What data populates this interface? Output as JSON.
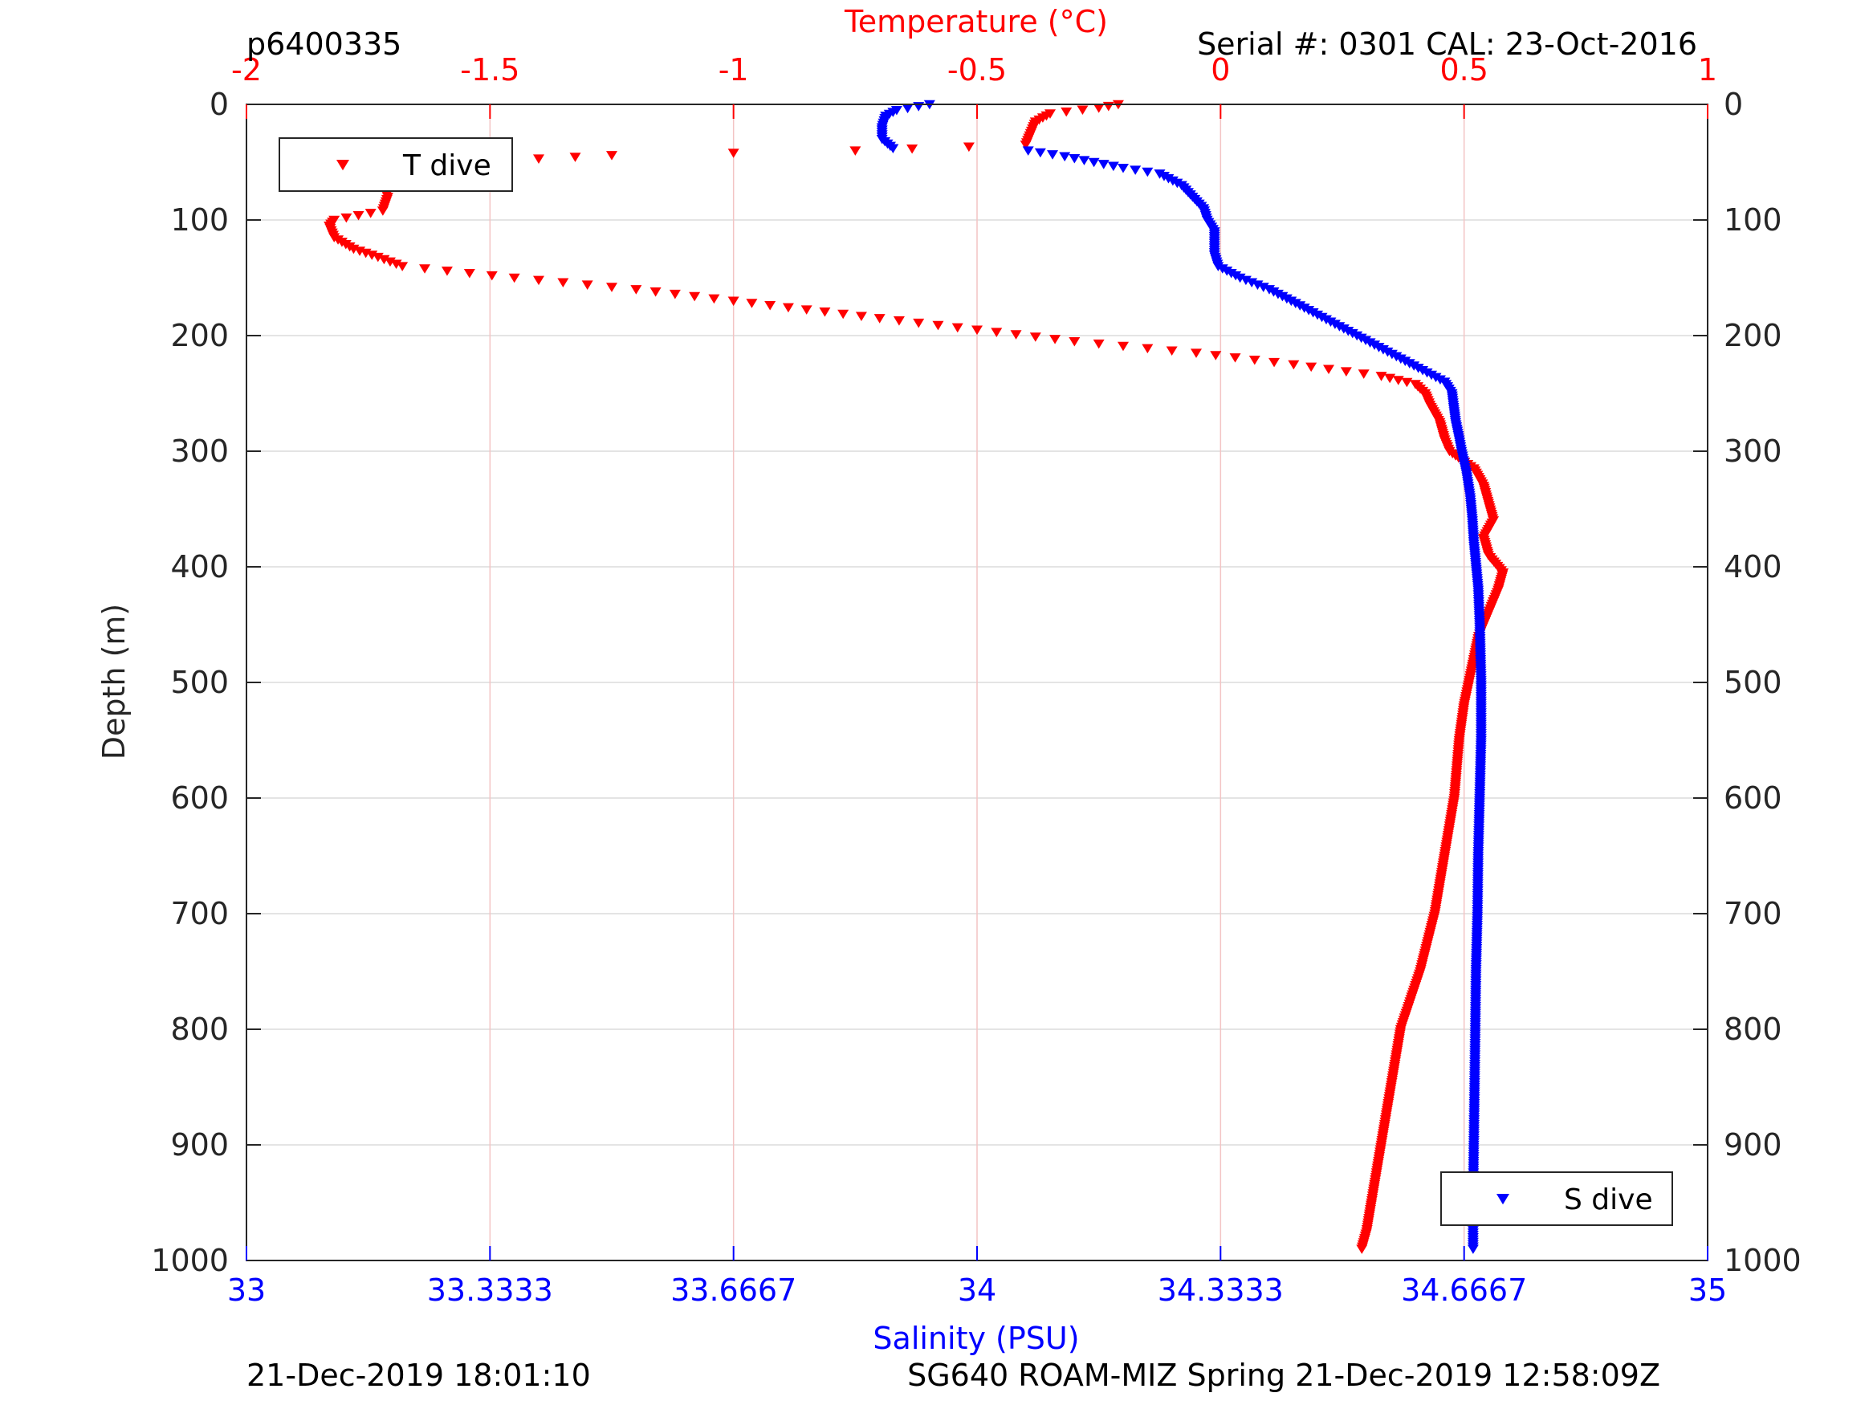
{
  "chart_data": {
    "type": "scatter",
    "header": {
      "left": "p6400335",
      "right": "Serial #: 0301  CAL: 23-Oct-2016"
    },
    "footer": {
      "left": "21-Dec-2019 18:01:10",
      "right": "SG640 ROAM-MIZ Spring 21-Dec-2019 12:58:09Z"
    },
    "ylabel": "Depth (m)",
    "ylim": [
      1000,
      0
    ],
    "y_ticks": [
      "0",
      "100",
      "200",
      "300",
      "400",
      "500",
      "600",
      "700",
      "800",
      "900",
      "1000"
    ],
    "temperature_axis": {
      "label": "Temperature (°C)",
      "position": "top",
      "xlim": [
        -2,
        1
      ],
      "ticks": [
        -2,
        -1.5,
        -1,
        -0.5,
        0,
        0.5,
        1
      ],
      "tick_labels": [
        "-2",
        "-1.5",
        "-1",
        "-0.5",
        "0",
        "0.5",
        "1"
      ],
      "color": "#ff0000",
      "grid": true
    },
    "salinity_axis": {
      "label": "Salinity (PSU)",
      "position": "bottom",
      "xlim": [
        33,
        35
      ],
      "ticks": [
        33,
        33.3333,
        33.6667,
        34,
        34.3333,
        34.6667,
        35
      ],
      "tick_labels": [
        "33",
        "33.3333",
        "33.6667",
        "34",
        "34.3333",
        "34.6667",
        "35"
      ],
      "color": "#0000ff"
    },
    "series": [
      {
        "name": "T dive",
        "axis": "temperature",
        "color": "#ff0000",
        "marker": "triangle-down",
        "legend_position": "top-left",
        "profile": [
          [
            0,
            -0.21
          ],
          [
            3,
            -0.25
          ],
          [
            8,
            -0.35
          ],
          [
            15,
            -0.38
          ],
          [
            25,
            -0.39
          ],
          [
            35,
            -0.4
          ],
          [
            40,
            -0.75
          ],
          [
            42,
            -1.0
          ],
          [
            44,
            -1.25
          ],
          [
            47,
            -1.4
          ],
          [
            50,
            -1.55
          ],
          [
            55,
            -1.66
          ],
          [
            62,
            -1.7
          ],
          [
            70,
            -1.72
          ],
          [
            80,
            -1.71
          ],
          [
            92,
            -1.72
          ],
          [
            100,
            -1.82
          ],
          [
            105,
            -1.83
          ],
          [
            115,
            -1.82
          ],
          [
            125,
            -1.78
          ],
          [
            132,
            -1.73
          ],
          [
            140,
            -1.68
          ],
          [
            150,
            -1.45
          ],
          [
            160,
            -1.2
          ],
          [
            170,
            -1.0
          ],
          [
            185,
            -0.7
          ],
          [
            195,
            -0.5
          ],
          [
            205,
            -0.3
          ],
          [
            215,
            -0.05
          ],
          [
            225,
            0.15
          ],
          [
            235,
            0.33
          ],
          [
            242,
            0.4
          ],
          [
            250,
            0.42
          ],
          [
            260,
            0.43
          ],
          [
            275,
            0.45
          ],
          [
            290,
            0.46
          ],
          [
            300,
            0.47
          ],
          [
            315,
            0.52
          ],
          [
            330,
            0.54
          ],
          [
            345,
            0.55
          ],
          [
            360,
            0.56
          ],
          [
            375,
            0.54
          ],
          [
            390,
            0.55
          ],
          [
            405,
            0.58
          ],
          [
            420,
            0.57
          ],
          [
            440,
            0.55
          ],
          [
            460,
            0.53
          ],
          [
            480,
            0.52
          ],
          [
            500,
            0.51
          ],
          [
            520,
            0.5
          ],
          [
            550,
            0.49
          ],
          [
            600,
            0.48
          ],
          [
            650,
            0.46
          ],
          [
            700,
            0.44
          ],
          [
            750,
            0.41
          ],
          [
            800,
            0.37
          ],
          [
            850,
            0.35
          ],
          [
            900,
            0.33
          ],
          [
            950,
            0.31
          ],
          [
            975,
            0.3
          ],
          [
            990,
            0.29
          ]
        ]
      },
      {
        "name": "S dive",
        "axis": "salinity",
        "color": "#0000ff",
        "marker": "triangle-down",
        "legend_position": "bottom-right",
        "profile": [
          [
            0,
            33.935
          ],
          [
            5,
            33.89
          ],
          [
            10,
            33.875
          ],
          [
            20,
            33.87
          ],
          [
            30,
            33.87
          ],
          [
            38,
            33.885
          ],
          [
            40,
            34.07
          ],
          [
            45,
            34.12
          ],
          [
            50,
            34.16
          ],
          [
            55,
            34.2
          ],
          [
            60,
            34.25
          ],
          [
            70,
            34.28
          ],
          [
            80,
            34.295
          ],
          [
            90,
            34.31
          ],
          [
            100,
            34.315
          ],
          [
            110,
            34.325
          ],
          [
            120,
            34.325
          ],
          [
            130,
            34.325
          ],
          [
            140,
            34.33
          ],
          [
            150,
            34.36
          ],
          [
            160,
            34.4
          ],
          [
            170,
            34.43
          ],
          [
            180,
            34.46
          ],
          [
            190,
            34.49
          ],
          [
            200,
            34.52
          ],
          [
            210,
            34.55
          ],
          [
            220,
            34.58
          ],
          [
            230,
            34.61
          ],
          [
            240,
            34.64
          ],
          [
            250,
            34.65
          ],
          [
            260,
            34.652
          ],
          [
            275,
            34.655
          ],
          [
            290,
            34.66
          ],
          [
            300,
            34.663
          ],
          [
            320,
            34.67
          ],
          [
            340,
            34.675
          ],
          [
            360,
            34.678
          ],
          [
            380,
            34.68
          ],
          [
            400,
            34.683
          ],
          [
            420,
            34.686
          ],
          [
            450,
            34.688
          ],
          [
            500,
            34.69
          ],
          [
            550,
            34.69
          ],
          [
            600,
            34.688
          ],
          [
            650,
            34.686
          ],
          [
            700,
            34.685
          ],
          [
            750,
            34.683
          ],
          [
            800,
            34.682
          ],
          [
            850,
            34.681
          ],
          [
            900,
            34.68
          ],
          [
            950,
            34.679
          ],
          [
            990,
            34.679
          ]
        ]
      }
    ]
  }
}
